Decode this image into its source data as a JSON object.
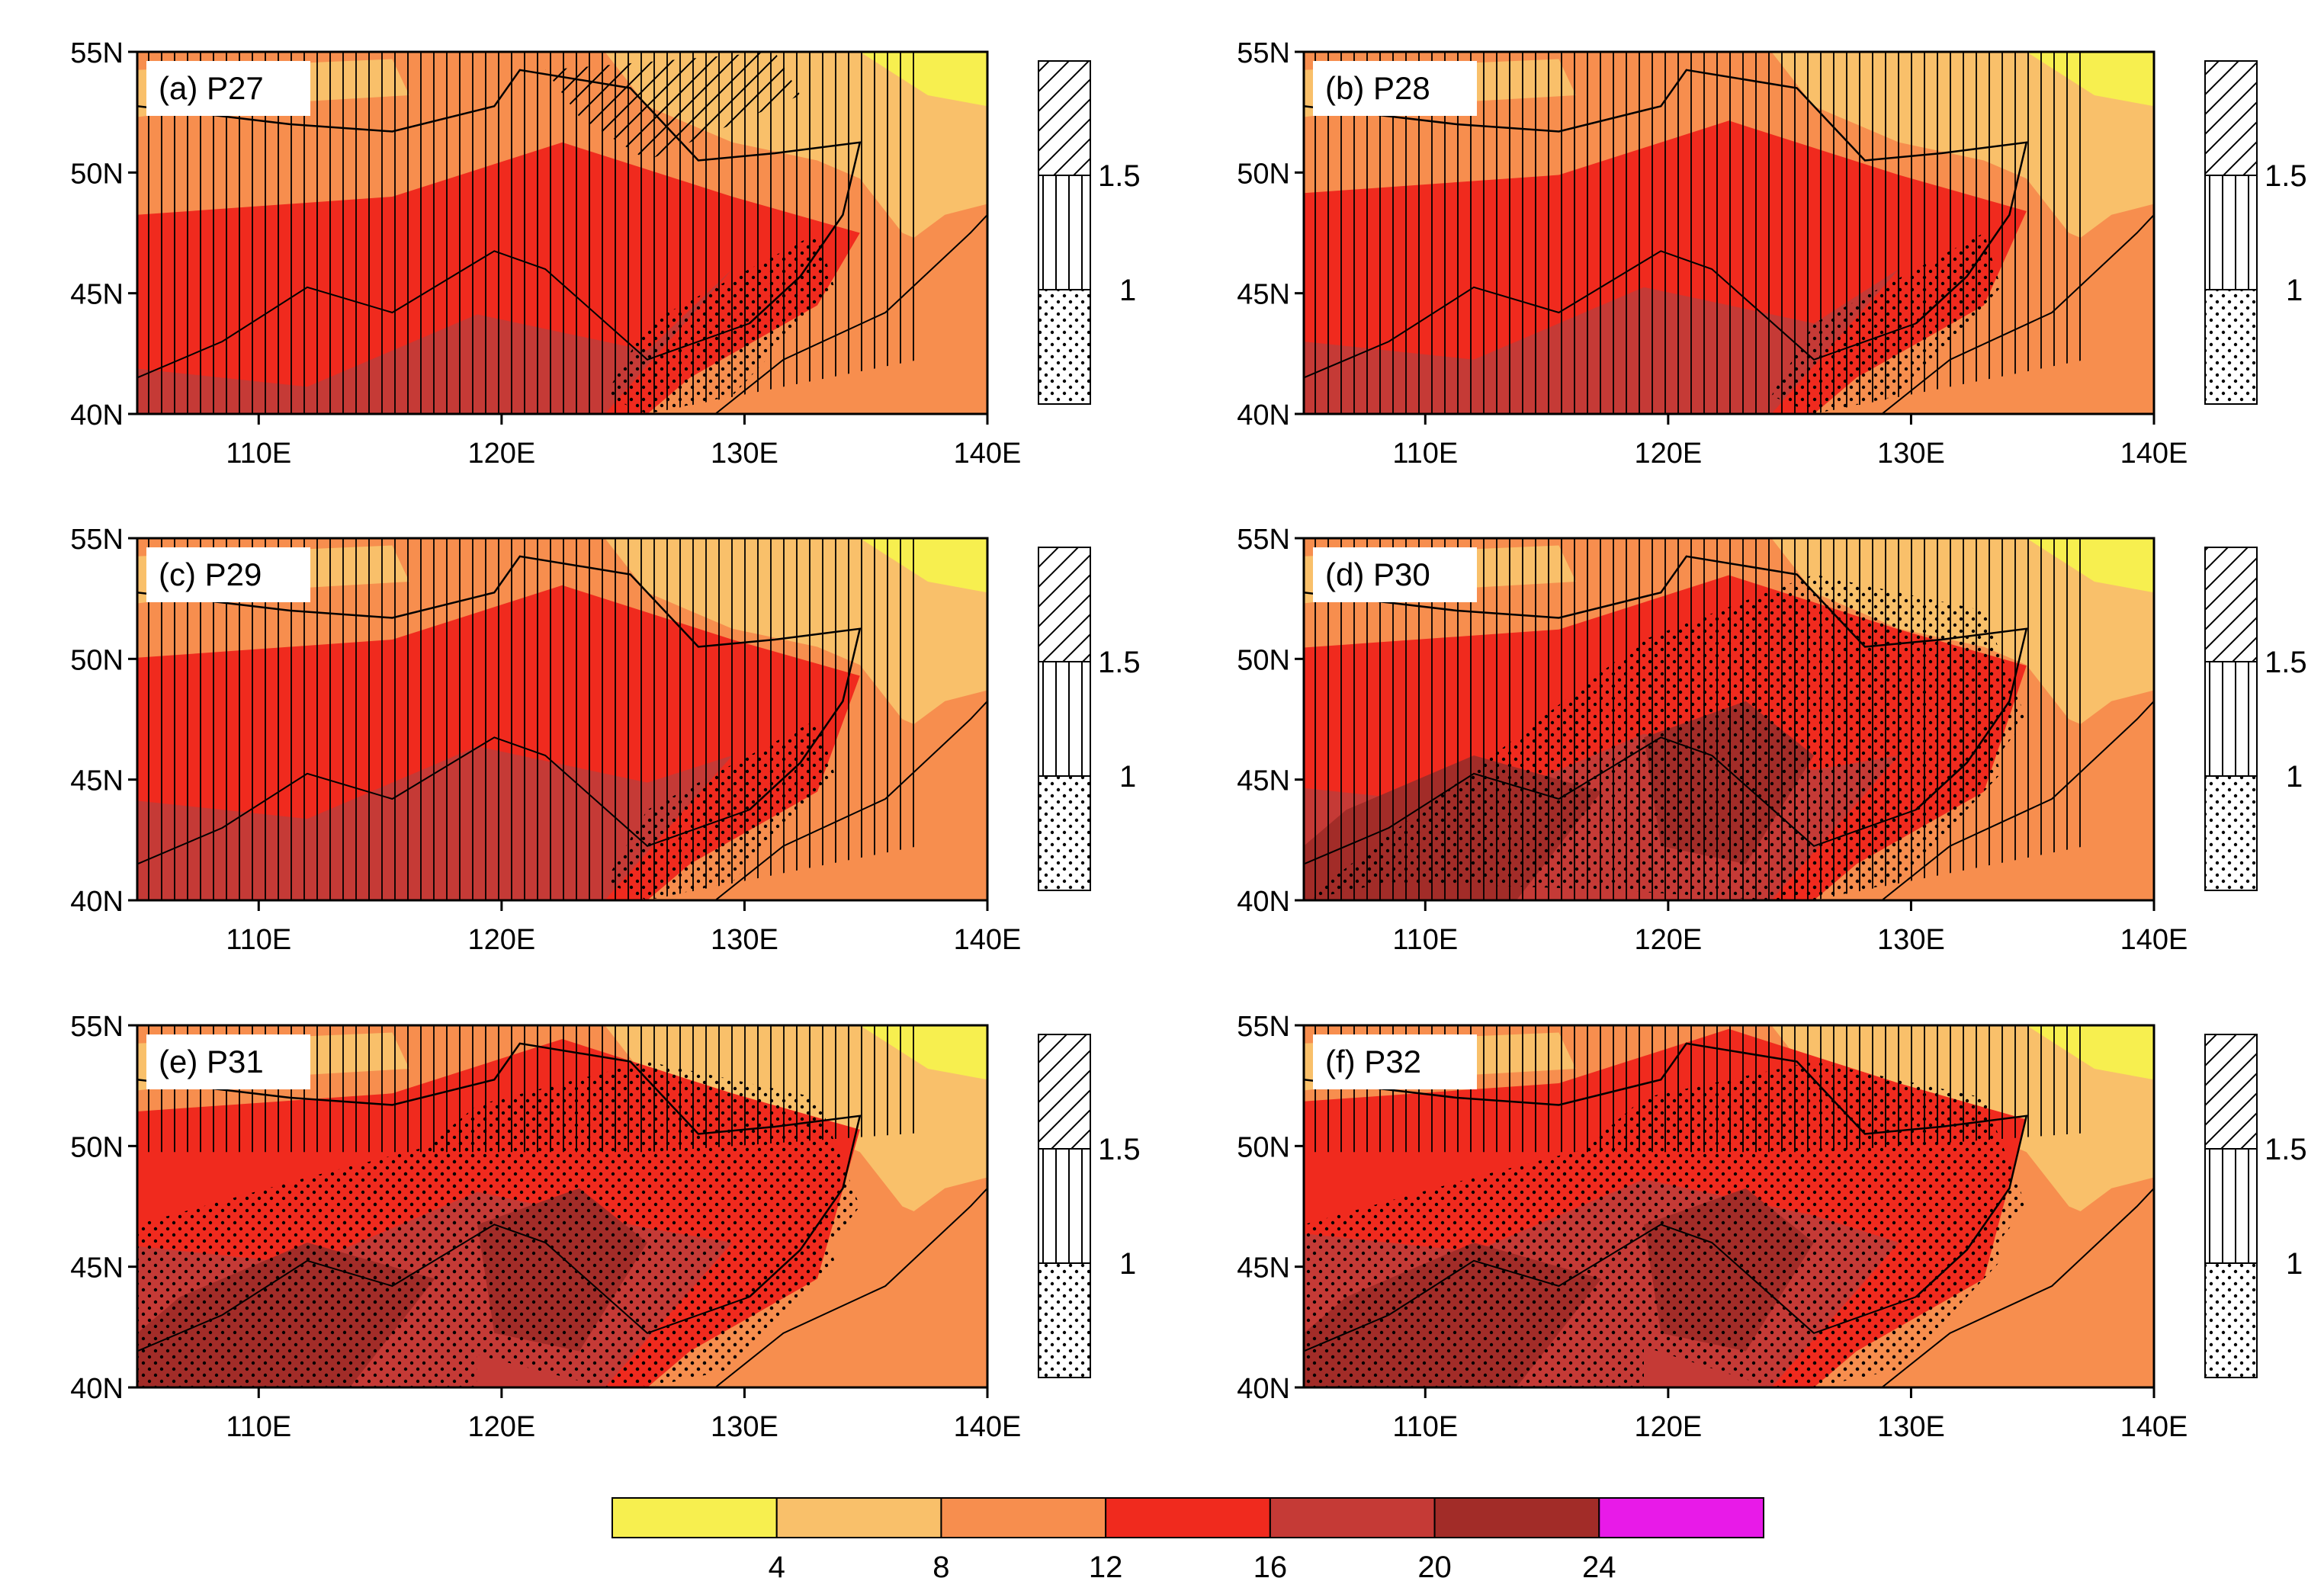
{
  "figure": {
    "lat_labels": [
      "55N",
      "50N",
      "45N",
      "40N"
    ],
    "lon_labels": [
      "110E",
      "120E",
      "130E",
      "140E"
    ],
    "hatch_legend_labels": [
      "1.5",
      "1"
    ],
    "colorbar": {
      "labels": [
        "4",
        "8",
        "12",
        "16",
        "20",
        "24"
      ],
      "colors": [
        "#f7ef4f",
        "#f9c06a",
        "#f78e4e",
        "#f02a1e",
        "#c53a36",
        "#a22c28",
        "#e81ae8"
      ]
    }
  },
  "panels": [
    {
      "id": "a",
      "title": "(a) P27",
      "stipple": 0.18,
      "warmth": 0.25
    },
    {
      "id": "b",
      "title": "(b) P28",
      "stipple": 0.12,
      "warmth": 0.4
    },
    {
      "id": "c",
      "title": "(c) P29",
      "stipple": 0.15,
      "warmth": 0.55
    },
    {
      "id": "d",
      "title": "(d) P30",
      "stipple": 0.4,
      "warmth": 0.62
    },
    {
      "id": "e",
      "title": "(e) P31",
      "stipple": 0.7,
      "warmth": 0.78
    },
    {
      "id": "f",
      "title": "(f) P32",
      "stipple": 0.8,
      "warmth": 0.85
    }
  ]
}
